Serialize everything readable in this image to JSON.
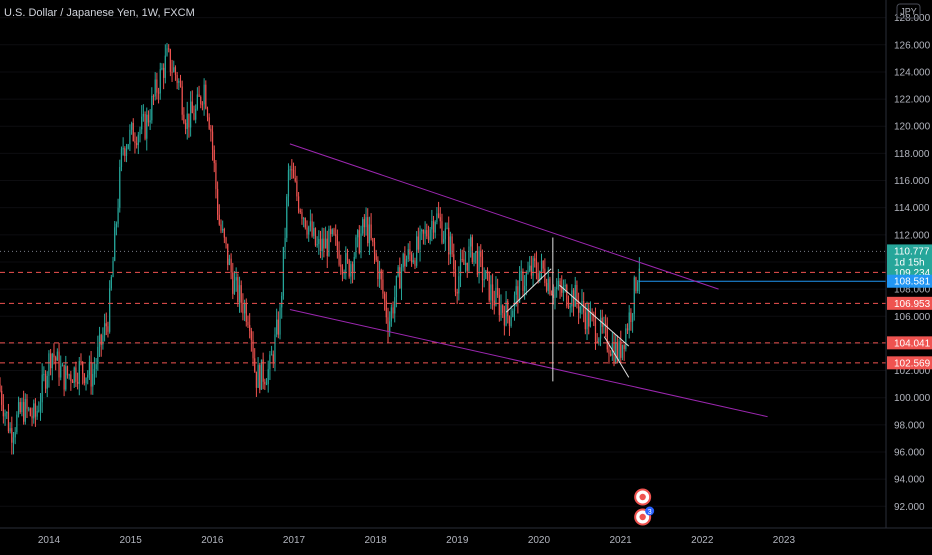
{
  "header": {
    "symbol_title": "U.S. Dollar / Japanese Yen, 1W, FXCM",
    "currency": "JPY"
  },
  "colors": {
    "background": "#000000",
    "bull": "#26a69a",
    "bear": "#ef5350",
    "channel": "#9c27b0",
    "pattern_lines": "#e0e0e0",
    "hline_dashed": "#ef5350",
    "hline_blue": "#2196f3",
    "axis_text": "#b2b5be"
  },
  "chart_data": {
    "type": "candlestick",
    "title": "U.S. Dollar / Japanese Yen, 1W, FXCM",
    "xlabel": "",
    "ylabel": "",
    "x_range": [
      2013.4,
      2024.25
    ],
    "y_range": [
      90.4,
      129.3
    ],
    "x_ticks": [
      "2014",
      "2015",
      "2016",
      "2017",
      "2018",
      "2019",
      "2020",
      "2021",
      "2022",
      "2023"
    ],
    "y_ticks": [
      92,
      94,
      96,
      98,
      100,
      102,
      104,
      106,
      108,
      110,
      112,
      114,
      116,
      118,
      120,
      122,
      124,
      126,
      128
    ],
    "price_anchors": [
      [
        2013.4,
        101.0
      ],
      [
        2013.55,
        97.5
      ],
      [
        2013.7,
        99.2
      ],
      [
        2013.85,
        98.5
      ],
      [
        2014.05,
        103.5
      ],
      [
        2014.2,
        101.5
      ],
      [
        2014.4,
        102.2
      ],
      [
        2014.55,
        101.6
      ],
      [
        2014.75,
        106.0
      ],
      [
        2014.92,
        118.5
      ],
      [
        2015.05,
        119.5
      ],
      [
        2015.2,
        120.0
      ],
      [
        2015.4,
        124.0
      ],
      [
        2015.47,
        125.0
      ],
      [
        2015.6,
        123.5
      ],
      [
        2015.7,
        120.5
      ],
      [
        2015.82,
        121.0
      ],
      [
        2015.92,
        123.0
      ],
      [
        2016.0,
        120.0
      ],
      [
        2016.1,
        113.0
      ],
      [
        2016.3,
        108.0
      ],
      [
        2016.48,
        106.0
      ],
      [
        2016.55,
        101.5
      ],
      [
        2016.72,
        102.0
      ],
      [
        2016.85,
        106.0
      ],
      [
        2016.96,
        117.0
      ],
      [
        2017.05,
        115.0
      ],
      [
        2017.3,
        111.0
      ],
      [
        2017.5,
        111.5
      ],
      [
        2017.68,
        109.5
      ],
      [
        2017.9,
        112.8
      ],
      [
        2018.05,
        109.5
      ],
      [
        2018.18,
        105.5
      ],
      [
        2018.35,
        110.0
      ],
      [
        2018.55,
        111.0
      ],
      [
        2018.75,
        113.5
      ],
      [
        2018.95,
        111.0
      ],
      [
        2019.0,
        108.5
      ],
      [
        2019.2,
        111.0
      ],
      [
        2019.45,
        107.5
      ],
      [
        2019.65,
        106.0
      ],
      [
        2019.8,
        108.5
      ],
      [
        2019.97,
        109.5
      ],
      [
        2020.08,
        109.3
      ],
      [
        2020.2,
        108.0
      ],
      [
        2020.45,
        107.5
      ],
      [
        2020.6,
        106.0
      ],
      [
        2020.75,
        105.0
      ],
      [
        2020.92,
        103.8
      ],
      [
        2021.0,
        103.2
      ],
      [
        2021.15,
        106.5
      ],
      [
        2021.25,
        110.0
      ]
    ],
    "candle_count": 380,
    "last_price": 110.777,
    "countdown": "1d 15h",
    "price_labels": [
      {
        "value": 110.777,
        "kind": "last",
        "color": "#26a69a"
      },
      {
        "value": 109.234,
        "kind": "level",
        "color": "#26a69a"
      },
      {
        "value": 108.581,
        "kind": "level",
        "color": "#2196f3"
      },
      {
        "value": 106.953,
        "kind": "level",
        "color": "#ef5350"
      },
      {
        "value": 104.041,
        "kind": "level",
        "color": "#ef5350"
      },
      {
        "value": 102.569,
        "kind": "level",
        "color": "#ef5350"
      }
    ],
    "horizontal_lines": [
      {
        "value": 109.234,
        "style": "dashed",
        "color": "#ef5350"
      },
      {
        "value": 106.953,
        "style": "dashed",
        "color": "#ef5350"
      },
      {
        "value": 104.041,
        "style": "dashed",
        "color": "#ef5350"
      },
      {
        "value": 102.569,
        "style": "dashed",
        "color": "#ef5350"
      },
      {
        "value": 108.581,
        "style": "solid",
        "color": "#2196f3",
        "x_start": 2021.22
      },
      {
        "value": 110.777,
        "style": "dotted",
        "color": "#787b86"
      }
    ],
    "trendlines": [
      {
        "name": "channel-top",
        "points": [
          [
            2016.95,
            118.7
          ],
          [
            2022.2,
            108.0
          ]
        ],
        "color": "#9c27b0"
      },
      {
        "name": "channel-bottom",
        "points": [
          [
            2016.95,
            106.5
          ],
          [
            2022.8,
            98.6
          ]
        ],
        "color": "#9c27b0"
      },
      {
        "name": "wedge-left",
        "points": [
          [
            2019.6,
            106.3
          ],
          [
            2020.15,
            109.5
          ]
        ],
        "color": "#e0e0e0"
      },
      {
        "name": "wedge-vertical",
        "points": [
          [
            2020.17,
            101.2
          ],
          [
            2020.17,
            111.8
          ]
        ],
        "color": "#e0e0e0"
      },
      {
        "name": "flag-upper",
        "points": [
          [
            2020.25,
            108.3
          ],
          [
            2021.1,
            103.8
          ]
        ],
        "color": "#e0e0e0"
      },
      {
        "name": "flag-lower",
        "points": [
          [
            2020.8,
            104.5
          ],
          [
            2021.1,
            101.5
          ]
        ],
        "color": "#e0e0e0"
      }
    ],
    "event_markers": [
      {
        "x": 2021.27,
        "kind": "target",
        "badge": ""
      },
      {
        "x": 2021.27,
        "kind": "flag",
        "badge": "3"
      }
    ]
  }
}
